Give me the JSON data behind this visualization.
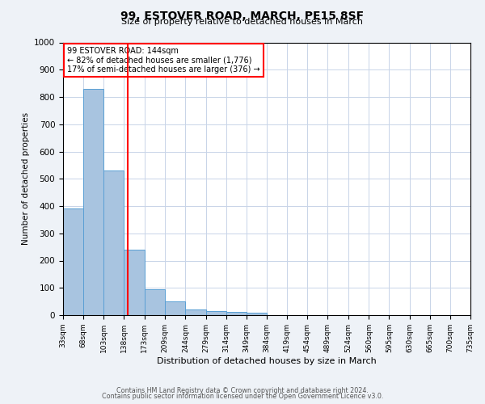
{
  "title1": "99, ESTOVER ROAD, MARCH, PE15 8SF",
  "title2": "Size of property relative to detached houses in March",
  "xlabel": "Distribution of detached houses by size in March",
  "ylabel": "Number of detached properties",
  "bar_edges": [
    33,
    68,
    103,
    138,
    173,
    209,
    244,
    279,
    314,
    349,
    384,
    419,
    454,
    489,
    524,
    560,
    595,
    630,
    665,
    700,
    735
  ],
  "bar_heights": [
    390,
    830,
    530,
    240,
    95,
    50,
    20,
    15,
    12,
    8,
    0,
    0,
    0,
    0,
    0,
    0,
    0,
    0,
    0,
    0
  ],
  "tick_labels": [
    "33sqm",
    "68sqm",
    "103sqm",
    "138sqm",
    "173sqm",
    "209sqm",
    "244sqm",
    "279sqm",
    "314sqm",
    "349sqm",
    "384sqm",
    "419sqm",
    "454sqm",
    "489sqm",
    "524sqm",
    "560sqm",
    "595sqm",
    "630sqm",
    "665sqm",
    "700sqm",
    "735sqm"
  ],
  "ylim": [
    0,
    1000
  ],
  "yticks": [
    0,
    100,
    200,
    300,
    400,
    500,
    600,
    700,
    800,
    900,
    1000
  ],
  "bar_color": "#a8c4e0",
  "bar_edge_color": "#5a9fd4",
  "vline_x": 144,
  "vline_color": "red",
  "annotation_text": "99 ESTOVER ROAD: 144sqm\n← 82% of detached houses are smaller (1,776)\n17% of semi-detached houses are larger (376) →",
  "footer1": "Contains HM Land Registry data © Crown copyright and database right 2024.",
  "footer2": "Contains public sector information licensed under the Open Government Licence v3.0.",
  "background_color": "#eef2f7",
  "plot_background": "#ffffff",
  "grid_color": "#c8d4e8"
}
